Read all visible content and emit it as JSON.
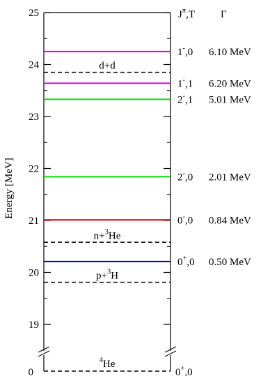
{
  "chart_data": {
    "type": "level_scheme",
    "ylabel": "Energy [MeV]",
    "ylim": [
      18.5,
      25
    ],
    "yticks": [
      "19",
      "20",
      "21",
      "22",
      "23",
      "24",
      "25"
    ],
    "ground_tick": "0",
    "column_headers": {
      "jpi_t": "Jπ,T",
      "gamma": "Γ"
    },
    "levels": [
      {
        "energy": 24.25,
        "color": "#e000e0",
        "jpi": "1",
        "parity": "-",
        "T": "0",
        "width": "6.10 MeV"
      },
      {
        "energy": 23.64,
        "color": "#e000e0",
        "jpi": "1",
        "parity": "-",
        "T": "1",
        "width": "6.20 MeV"
      },
      {
        "energy": 23.33,
        "color": "#00e000",
        "jpi": "2",
        "parity": "-",
        "T": "1",
        "width": "5.01 MeV"
      },
      {
        "energy": 21.84,
        "color": "#00e000",
        "jpi": "2",
        "parity": "-",
        "T": "0",
        "width": "2.01 MeV"
      },
      {
        "energy": 21.01,
        "color": "#e00000",
        "jpi": "0",
        "parity": "-",
        "T": "0",
        "width": "0.84 MeV"
      },
      {
        "energy": 20.21,
        "color": "#0000c8",
        "jpi": "0",
        "parity": "+",
        "T": "0",
        "width": "0.50 MeV"
      }
    ],
    "thresholds": [
      {
        "energy": 23.85,
        "label": "d+d"
      },
      {
        "energy": 20.58,
        "label": "n+",
        "sup": "3",
        "label_rest": "He"
      },
      {
        "energy": 19.81,
        "label": "p+",
        "sup": "3",
        "label_rest": "H"
      }
    ],
    "ground_state": {
      "energy": 0,
      "sup": "4",
      "label_rest": "He",
      "jpi": "0",
      "parity": "+",
      "T": "0"
    }
  }
}
